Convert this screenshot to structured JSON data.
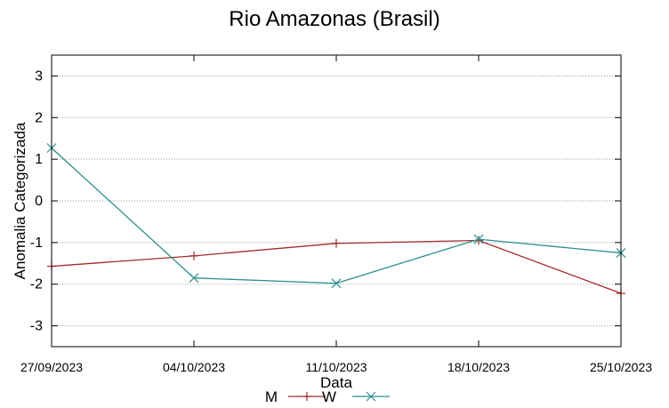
{
  "chart_data": {
    "type": "line",
    "title": "Rio Amazonas (Brasil)",
    "xlabel": "Data",
    "ylabel": "Anomalia Categorizada",
    "categories": [
      "27/09/2023",
      "04/10/2023",
      "11/10/2023",
      "18/10/2023",
      "25/10/2023"
    ],
    "ylim": [
      -3.5,
      3.5
    ],
    "yticks": [
      3,
      2,
      1,
      0,
      -1,
      -2,
      -3
    ],
    "grid": true,
    "legend_position": "bottom-center",
    "series": [
      {
        "name": "M",
        "color": "#a52a2a",
        "marker": "plus",
        "values": [
          -1.57,
          -1.32,
          -1.02,
          -0.95,
          -2.22
        ]
      },
      {
        "name": "W",
        "color": "#2f8f8f",
        "marker": "cross",
        "values": [
          1.27,
          -1.85,
          -1.98,
          -0.92,
          -1.25
        ]
      }
    ]
  }
}
